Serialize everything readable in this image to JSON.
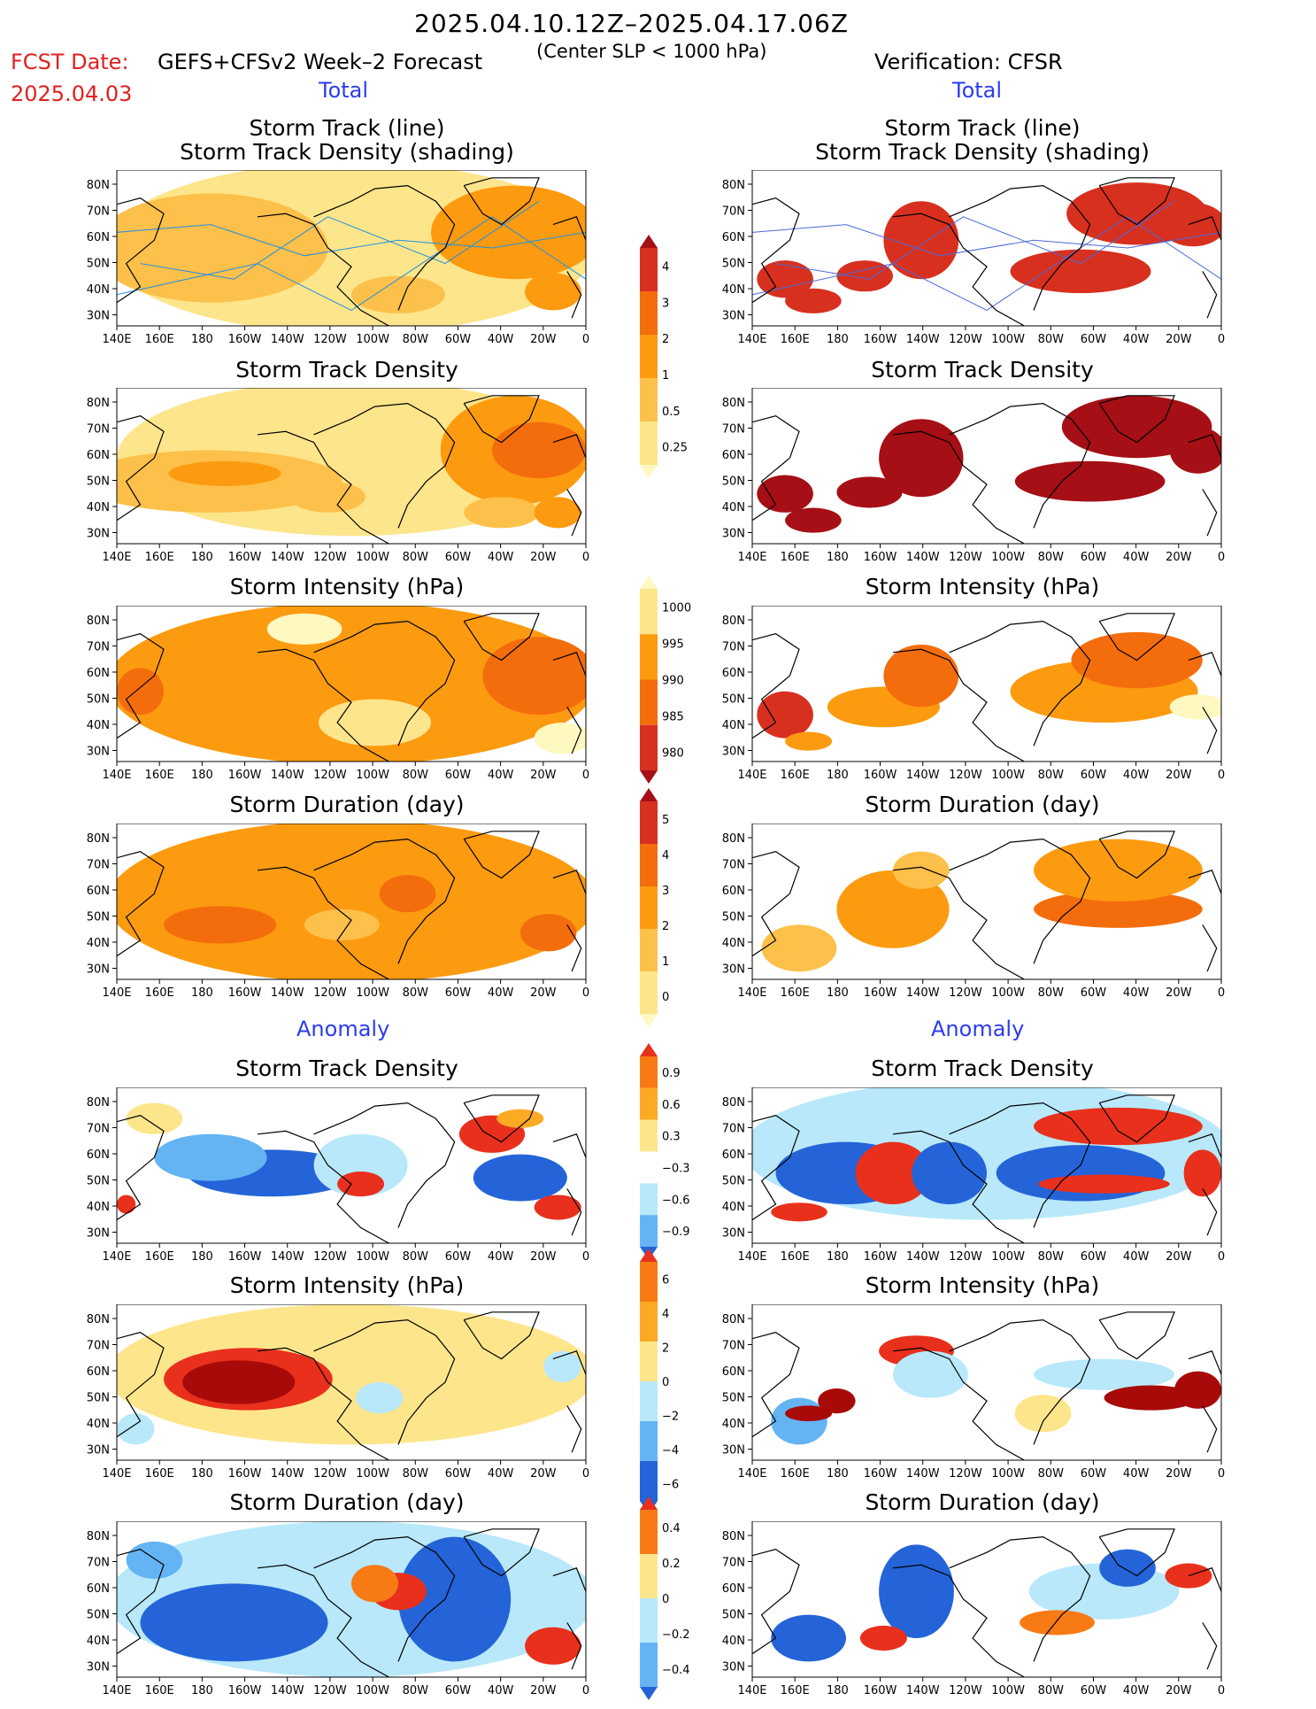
{
  "header": {
    "period": "2025.04.10.12Z–2025.04.17.06Z",
    "fcst_label": "FCST Date:",
    "fcst_date": "2025.04.03",
    "model": "GEFS+CFSv2 Week–2 Forecast",
    "criterion": "(Center SLP < 1000 hPa)",
    "verification": "Verification: CFSR"
  },
  "sections": {
    "total": "Total",
    "anomaly": "Anomaly"
  },
  "panel_titles": {
    "track_line": "Storm Track (line)",
    "track_shading": "Storm Track Density (shading)",
    "density": "Storm Track Density",
    "intensity": "Storm Intensity (hPa)",
    "duration": "Storm Duration (day)"
  },
  "axes": {
    "lon_ticks": [
      "140E",
      "160E",
      "180",
      "160W",
      "140W",
      "120W",
      "100W",
      "80W",
      "60W",
      "40W",
      "20W",
      "0"
    ],
    "lat_ticks": [
      "80N",
      "70N",
      "60N",
      "50N",
      "40N",
      "30N"
    ]
  },
  "colorbars": {
    "total_density": {
      "labels": [
        "4",
        "3",
        "2",
        "1",
        "0.5",
        "0.25"
      ],
      "colors": [
        "#a50f15",
        "#d7301f",
        "#f46d0c",
        "#fc9b10",
        "#fdc04a",
        "#fde58c",
        "#fff8c0"
      ]
    },
    "total_intensity": {
      "labels": [
        "1000",
        "995",
        "990",
        "985",
        "980"
      ],
      "colors": [
        "#fff8c0",
        "#fde58c",
        "#fc9b10",
        "#f46d0c",
        "#d7301f",
        "#a50f15"
      ]
    },
    "total_duration": {
      "labels": [
        "5",
        "4",
        "3",
        "2",
        "1",
        "0"
      ],
      "colors": [
        "#a50f15",
        "#d7301f",
        "#f46d0c",
        "#fc9b10",
        "#fdc04a",
        "#fde58c",
        "#fff8c0"
      ]
    },
    "anom_density": {
      "labels": [
        "0.9",
        "0.6",
        "0.3",
        "−0.3",
        "−0.6",
        "−0.9"
      ],
      "colors": [
        "#e8301c",
        "#f87a14",
        "#fca924",
        "#fde58c",
        "#ffffff",
        "#b8e8fa",
        "#64b4f4",
        "#2464d8"
      ]
    },
    "anom_intensity": {
      "labels": [
        "6",
        "4",
        "2",
        "0",
        "−2",
        "−4",
        "−6"
      ],
      "colors": [
        "#e8301c",
        "#f87a14",
        "#fca924",
        "#fde58c",
        "#b8e8fa",
        "#64b4f4",
        "#2464d8",
        "#2464d8"
      ]
    },
    "anom_duration": {
      "labels": [
        "0.4",
        "0.2",
        "0",
        "−0.2",
        "−0.4"
      ],
      "colors": [
        "#e8301c",
        "#f87a14",
        "#fde58c",
        "#b8e8fa",
        "#64b4f4",
        "#2464d8"
      ]
    }
  }
}
